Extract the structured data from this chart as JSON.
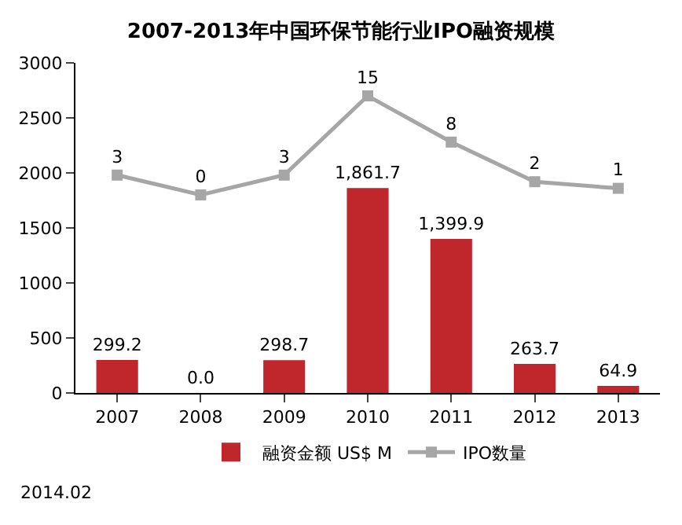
{
  "chart_data": {
    "type": "bar",
    "title": "2007-2013年中国环保节能行业IPO融资规模",
    "categories": [
      "2007",
      "2008",
      "2009",
      "2010",
      "2011",
      "2012",
      "2013"
    ],
    "series": [
      {
        "name": "融资金额 US$ M",
        "color": "#c0272d",
        "values": [
          299.2,
          0.0,
          298.7,
          1861.7,
          1399.9,
          263.7,
          64.9
        ],
        "value_labels": [
          "299.2",
          "0.0",
          "298.7",
          "1,861.7",
          "1,399.9",
          "263.7",
          "64.9"
        ]
      },
      {
        "name": "IPO数量",
        "type": "line",
        "axis": "y2",
        "color": "#a6a6a6",
        "marker": "square",
        "values": [
          3,
          0,
          3,
          15,
          8,
          2,
          1
        ],
        "value_labels": [
          "3",
          "0",
          "3",
          "15",
          "8",
          "2",
          "1"
        ]
      }
    ],
    "ylim": [
      0,
      3000
    ],
    "yticks": [
      0,
      500,
      1000,
      1500,
      2000,
      2500,
      3000
    ],
    "y2lim": [
      -30,
      20
    ],
    "grid": false,
    "legend": "bottom",
    "annotations": [
      "2014.02"
    ]
  }
}
